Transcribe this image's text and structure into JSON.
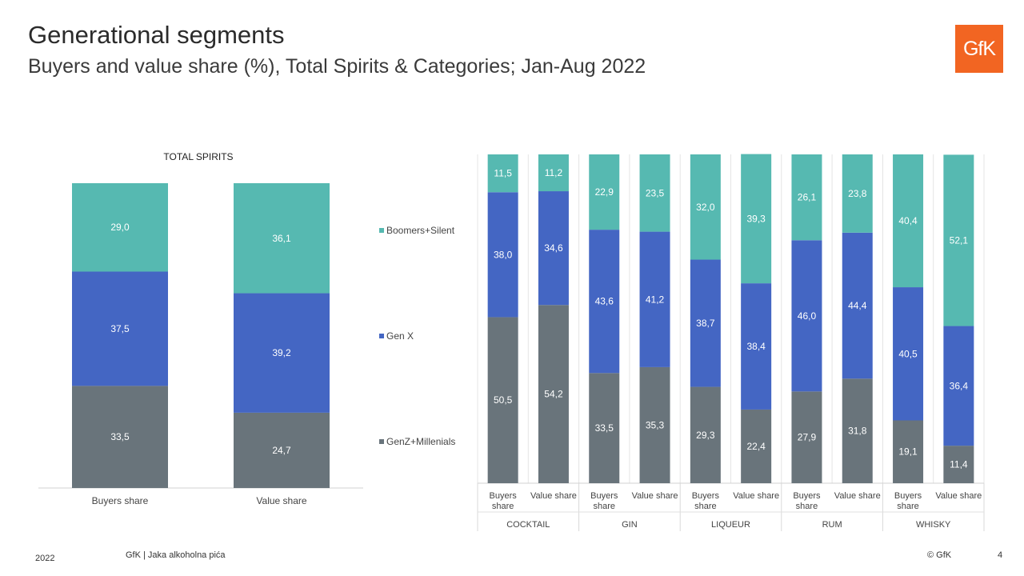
{
  "header": {
    "title": "Generational segments",
    "subtitle": "Buyers and value share (%), Total Spirits & Categories;  Jan-Aug 2022",
    "logo_text": "GfK"
  },
  "footer": {
    "year": "2022",
    "source": "GfK | Jaka alkoholna pića",
    "copyright": "© GfK",
    "page": "4"
  },
  "colors": {
    "boomers": "#56b9b1",
    "genx": "#4466c3",
    "genz": "#69747b",
    "label_on_bar": "#ffffff"
  },
  "chart_data": [
    {
      "type": "bar",
      "stacked": true,
      "title": "TOTAL SPIRITS",
      "categories": [
        "Buyers share",
        "Value share"
      ],
      "series": [
        {
          "name": "GenZ+Millenials",
          "values": [
            33.5,
            24.7
          ],
          "labels": [
            "33,5",
            "24,7"
          ]
        },
        {
          "name": "Gen X",
          "values": [
            37.5,
            39.2
          ],
          "labels": [
            "37,5",
            "39,2"
          ]
        },
        {
          "name": "Boomers+Silent",
          "values": [
            29.0,
            36.1
          ],
          "labels": [
            "29,0",
            "36,1"
          ]
        }
      ],
      "legend": {
        "placement": "right",
        "order": [
          "Boomers+Silent",
          "Gen X",
          "GenZ+Millenials"
        ]
      },
      "ylim": [
        0,
        100
      ]
    },
    {
      "type": "bar",
      "stacked": true,
      "groups": [
        {
          "name": "COCKTAIL",
          "categories": [
            "Buyers share",
            "Value share"
          ]
        },
        {
          "name": "GIN",
          "categories": [
            "Buyers share",
            "Value share"
          ]
        },
        {
          "name": "LIQUEUR",
          "categories": [
            "Buyers share",
            "Value share"
          ]
        },
        {
          "name": "RUM",
          "categories": [
            "Buyers share",
            "Value share"
          ]
        },
        {
          "name": "WHISKY",
          "categories": [
            "Buyers share",
            "Value share"
          ]
        }
      ],
      "series": [
        {
          "name": "GenZ+Millenials",
          "values": [
            50.5,
            54.2,
            33.5,
            35.3,
            29.3,
            22.4,
            27.9,
            31.8,
            19.1,
            11.4
          ],
          "labels": [
            "50,5",
            "54,2",
            "33,5",
            "35,3",
            "29,3",
            "22,4",
            "27,9",
            "31,8",
            "19,1",
            "11,4"
          ]
        },
        {
          "name": "Gen X",
          "values": [
            38.0,
            34.6,
            43.6,
            41.2,
            38.7,
            38.4,
            46.0,
            44.4,
            40.5,
            36.4
          ],
          "labels": [
            "38,0",
            "34,6",
            "43,6",
            "41,2",
            "38,7",
            "38,4",
            "46,0",
            "44,4",
            "40,5",
            "36,4"
          ]
        },
        {
          "name": "Boomers+Silent",
          "values": [
            11.5,
            11.2,
            22.9,
            23.5,
            32.0,
            39.3,
            26.1,
            23.8,
            40.4,
            52.1
          ],
          "labels": [
            "11,5",
            "11,2",
            "22,9",
            "23,5",
            "32,0",
            "39,3",
            "26,1",
            "23,8",
            "40,4",
            "52,1"
          ]
        }
      ],
      "ylim": [
        0,
        100
      ]
    }
  ]
}
